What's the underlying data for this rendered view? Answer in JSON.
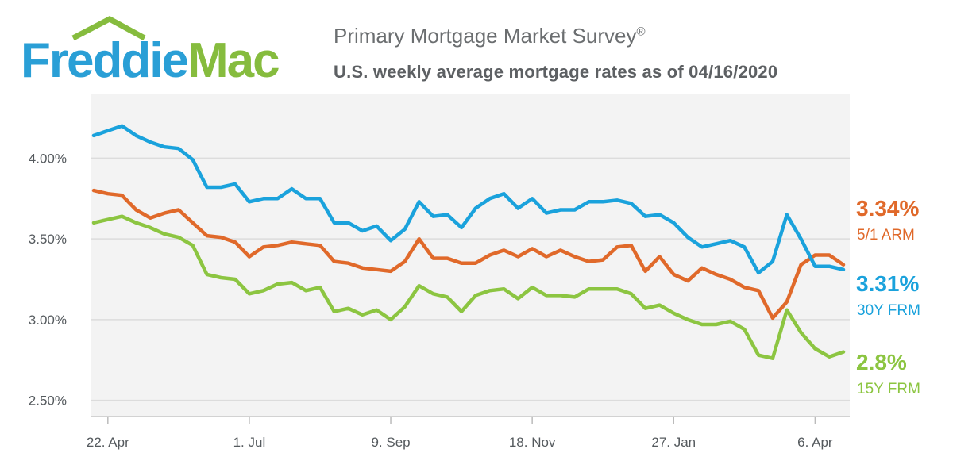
{
  "header": {
    "logo_part1": "Freddie",
    "logo_part2": "Mac",
    "title": "Primary Mortgage Market Survey",
    "title_mark": "®",
    "subtitle": "U.S. weekly average mortgage rates as of 04/16/2020"
  },
  "colors": {
    "arm": "#e0692a",
    "frm30": "#1aa2dc",
    "frm15": "#8cc541",
    "grid": "#dcdcdc",
    "plot_bg": "#f3f3f3",
    "logo_blue": "#2a9fd6",
    "logo_green": "#86bc3e"
  },
  "chart_data": {
    "type": "line",
    "x_tick_labels": [
      "22. Apr",
      "1. Jul",
      "9. Sep",
      "18. Nov",
      "27. Jan",
      "6. Apr"
    ],
    "x_tick_weeks": [
      1,
      11,
      21,
      31,
      41,
      51
    ],
    "y_tick_labels": [
      "2.50%",
      "3.00%",
      "3.50%",
      "4.00%"
    ],
    "y_ticks": [
      2.5,
      3.0,
      3.5,
      4.0
    ],
    "ylim": [
      2.4,
      4.4
    ],
    "grid": true,
    "legend": "right, at line ends",
    "series": [
      {
        "name": "5/1 ARM",
        "end_label": "3.34%",
        "values": [
          3.8,
          3.78,
          3.77,
          3.68,
          3.63,
          3.66,
          3.68,
          3.6,
          3.52,
          3.51,
          3.48,
          3.39,
          3.45,
          3.46,
          3.48,
          3.47,
          3.46,
          3.36,
          3.35,
          3.32,
          3.31,
          3.3,
          3.36,
          3.5,
          3.38,
          3.38,
          3.35,
          3.35,
          3.4,
          3.43,
          3.39,
          3.44,
          3.39,
          3.43,
          3.39,
          3.36,
          3.37,
          3.45,
          3.46,
          3.3,
          3.39,
          3.28,
          3.24,
          3.32,
          3.28,
          3.25,
          3.2,
          3.18,
          3.01,
          3.11,
          3.34,
          3.4,
          3.4,
          3.34
        ]
      },
      {
        "name": "30Y FRM",
        "end_label": "3.31%",
        "values": [
          4.14,
          4.17,
          4.2,
          4.14,
          4.1,
          4.07,
          4.06,
          3.99,
          3.82,
          3.82,
          3.84,
          3.73,
          3.75,
          3.75,
          3.81,
          3.75,
          3.75,
          3.6,
          3.6,
          3.55,
          3.58,
          3.49,
          3.56,
          3.73,
          3.64,
          3.65,
          3.57,
          3.69,
          3.75,
          3.78,
          3.69,
          3.75,
          3.66,
          3.68,
          3.68,
          3.73,
          3.73,
          3.74,
          3.72,
          3.64,
          3.65,
          3.6,
          3.51,
          3.45,
          3.47,
          3.49,
          3.45,
          3.29,
          3.36,
          3.65,
          3.5,
          3.33,
          3.33,
          3.31
        ]
      },
      {
        "name": "15Y FRM",
        "end_label": "2.8%",
        "values": [
          3.6,
          3.62,
          3.64,
          3.6,
          3.57,
          3.53,
          3.51,
          3.46,
          3.28,
          3.26,
          3.25,
          3.16,
          3.18,
          3.22,
          3.23,
          3.18,
          3.2,
          3.05,
          3.07,
          3.03,
          3.06,
          3.0,
          3.08,
          3.21,
          3.16,
          3.14,
          3.05,
          3.15,
          3.18,
          3.19,
          3.13,
          3.2,
          3.15,
          3.15,
          3.14,
          3.19,
          3.19,
          3.19,
          3.16,
          3.07,
          3.09,
          3.04,
          3.0,
          2.97,
          2.97,
          2.99,
          2.94,
          2.78,
          2.76,
          3.06,
          2.92,
          2.82,
          2.77,
          2.8
        ]
      }
    ]
  }
}
